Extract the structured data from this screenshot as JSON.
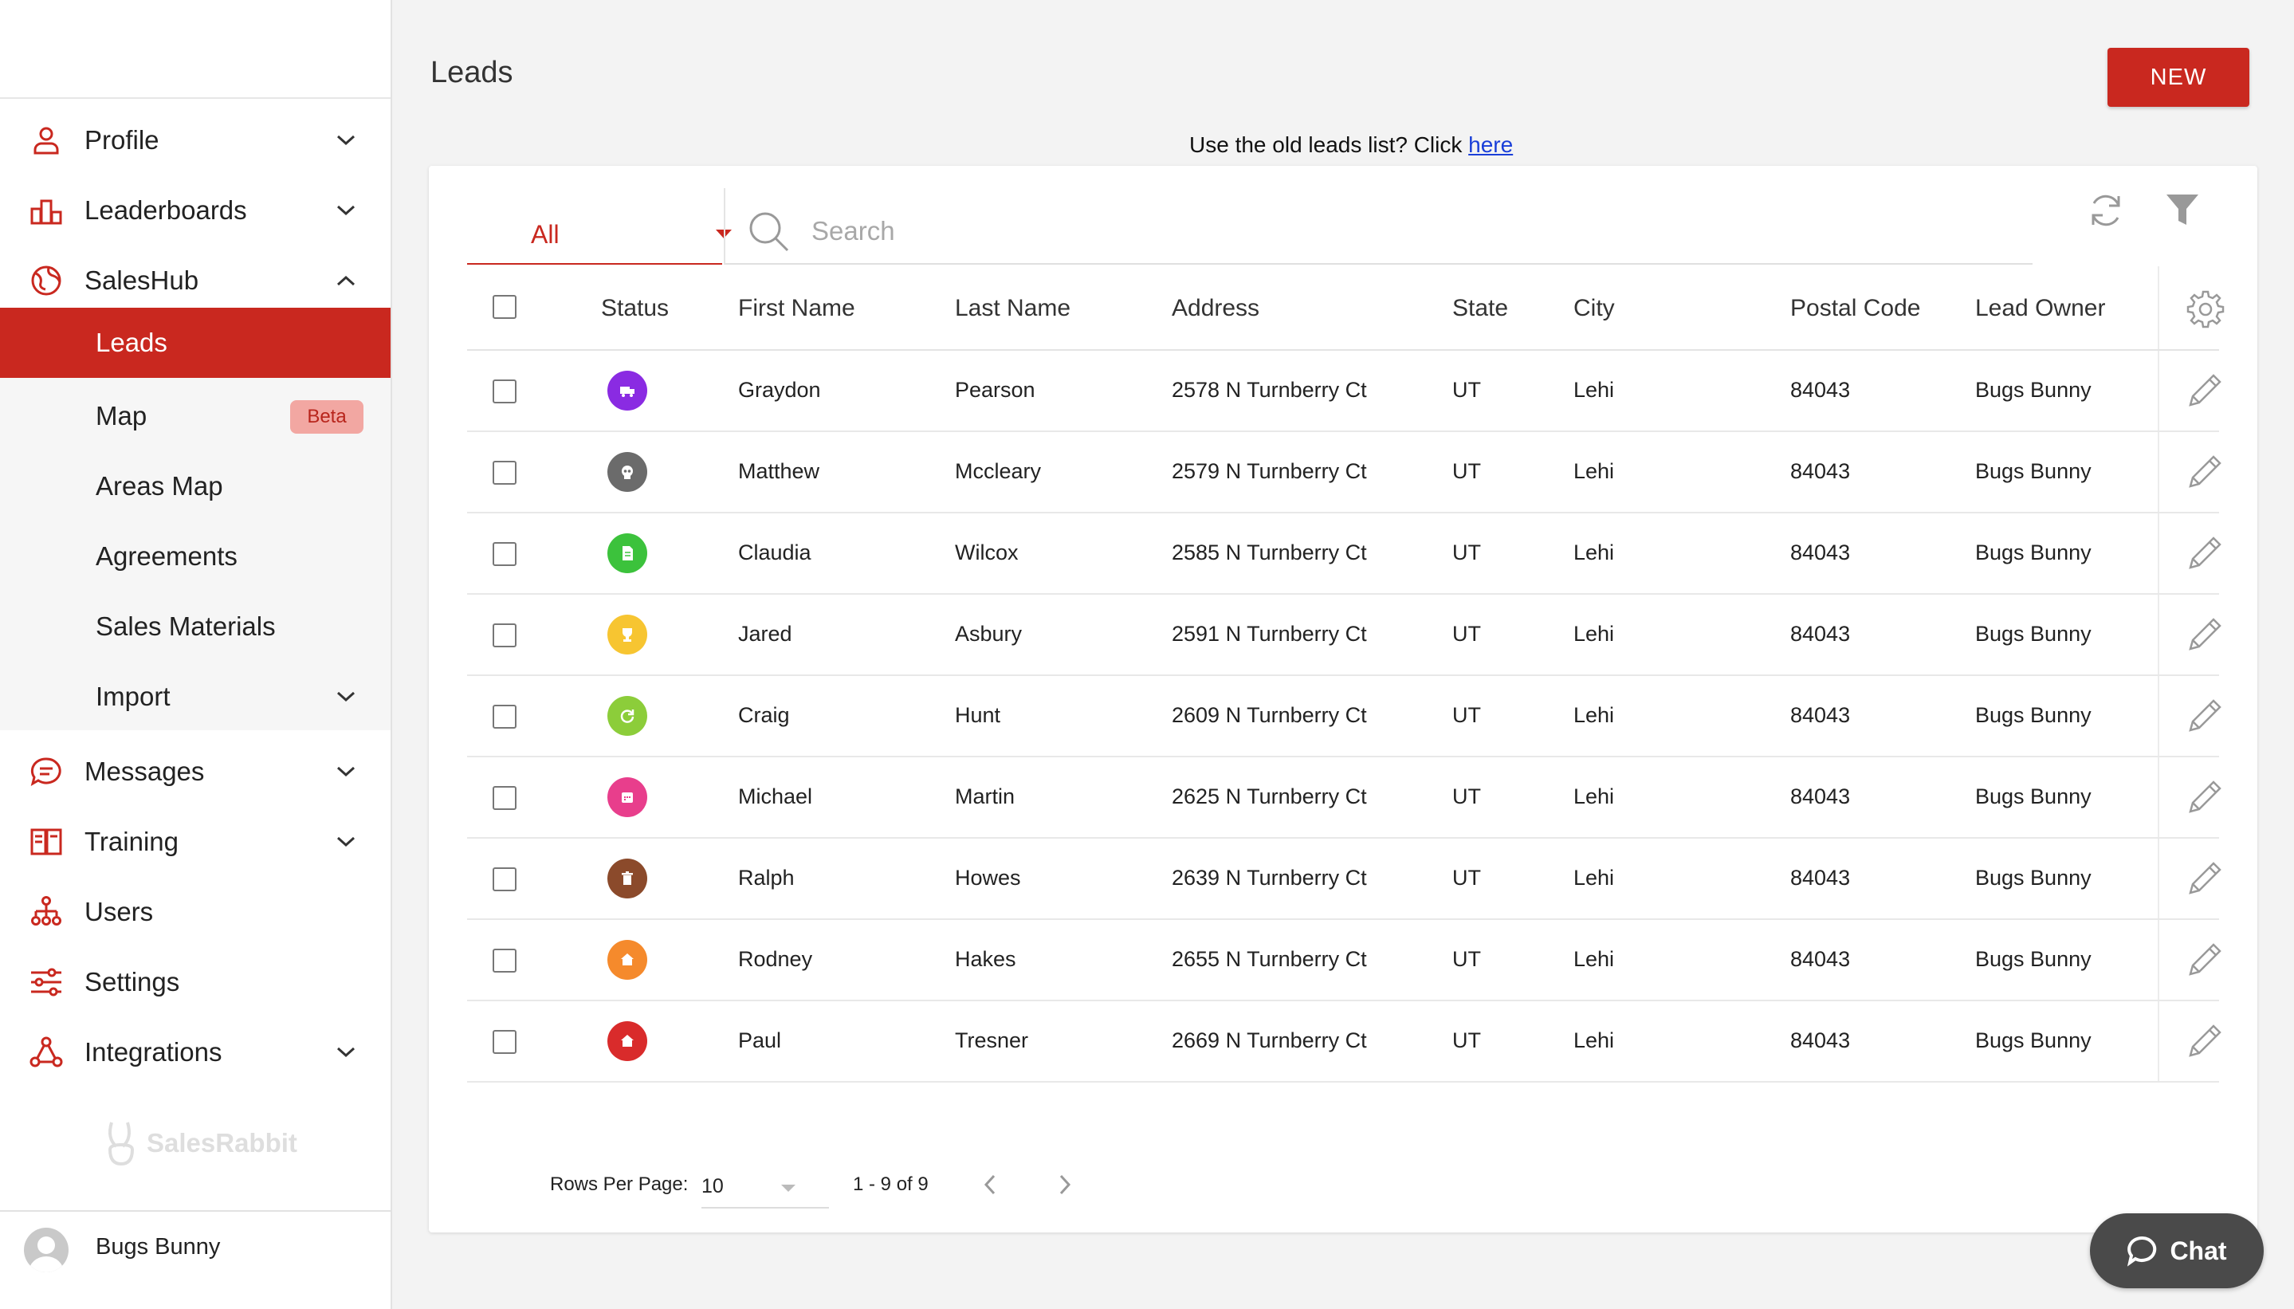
{
  "colors": {
    "brand": "#c9281f",
    "link": "#1a3fd8"
  },
  "sidebar": {
    "items": [
      {
        "label": "Profile",
        "icon": "person-icon",
        "has_chevron": true
      },
      {
        "label": "Leaderboards",
        "icon": "podium-icon",
        "has_chevron": true
      },
      {
        "label": "SalesHub",
        "icon": "globe-icon",
        "expanded": true
      },
      {
        "label": "Messages",
        "icon": "chat-bubble-icon",
        "has_chevron": true
      },
      {
        "label": "Training",
        "icon": "book-icon",
        "has_chevron": true
      },
      {
        "label": "Users",
        "icon": "org-chart-icon"
      },
      {
        "label": "Settings",
        "icon": "sliders-icon"
      },
      {
        "label": "Integrations",
        "icon": "nodes-icon",
        "has_chevron": true
      }
    ],
    "saleshub_sub": [
      {
        "label": "Leads",
        "active": true
      },
      {
        "label": "Map",
        "badge": "Beta"
      },
      {
        "label": "Areas Map"
      },
      {
        "label": "Agreements"
      },
      {
        "label": "Sales Materials"
      },
      {
        "label": "Import",
        "has_chevron": true
      }
    ],
    "logo_text": "SalesRabbit",
    "user_name": "Bugs Bunny"
  },
  "header": {
    "title": "Leads",
    "new_button": "NEW",
    "old_list_text": "Use the old leads list? Click ",
    "old_list_link": "here"
  },
  "filters": {
    "status_filter": "All",
    "search_placeholder": "Search"
  },
  "table": {
    "columns": [
      "Status",
      "First Name",
      "Last Name",
      "Address",
      "State",
      "City",
      "Postal Code",
      "Lead Owner"
    ],
    "rows": [
      {
        "status_color": "#8a2be2",
        "status_icon": "truck-icon",
        "first": "Graydon",
        "last": "Pearson",
        "address": "2578 N Turnberry Ct",
        "state": "UT",
        "city": "Lehi",
        "postal": "84043",
        "owner": "Bugs Bunny"
      },
      {
        "status_color": "#6b6b6b",
        "status_icon": "skull-icon",
        "first": "Matthew",
        "last": "Mccleary",
        "address": "2579 N Turnberry Ct",
        "state": "UT",
        "city": "Lehi",
        "postal": "84043",
        "owner": "Bugs Bunny"
      },
      {
        "status_color": "#3cc23c",
        "status_icon": "document-icon",
        "first": "Claudia",
        "last": "Wilcox",
        "address": "2585 N Turnberry Ct",
        "state": "UT",
        "city": "Lehi",
        "postal": "84043",
        "owner": "Bugs Bunny"
      },
      {
        "status_color": "#f7c531",
        "status_icon": "trophy-icon",
        "first": "Jared",
        "last": "Asbury",
        "address": "2591 N Turnberry Ct",
        "state": "UT",
        "city": "Lehi",
        "postal": "84043",
        "owner": "Bugs Bunny"
      },
      {
        "status_color": "#8ccd3a",
        "status_icon": "refresh-icon",
        "first": "Craig",
        "last": "Hunt",
        "address": "2609 N Turnberry Ct",
        "state": "UT",
        "city": "Lehi",
        "postal": "84043",
        "owner": "Bugs Bunny"
      },
      {
        "status_color": "#e83e8c",
        "status_icon": "calendar-icon",
        "first": "Michael",
        "last": "Martin",
        "address": "2625 N Turnberry Ct",
        "state": "UT",
        "city": "Lehi",
        "postal": "84043",
        "owner": "Bugs Bunny"
      },
      {
        "status_color": "#8b4a2b",
        "status_icon": "trash-icon",
        "first": "Ralph",
        "last": "Howes",
        "address": "2639 N Turnberry Ct",
        "state": "UT",
        "city": "Lehi",
        "postal": "84043",
        "owner": "Bugs Bunny"
      },
      {
        "status_color": "#f58a2c",
        "status_icon": "house-icon",
        "first": "Rodney",
        "last": "Hakes",
        "address": "2655 N Turnberry Ct",
        "state": "UT",
        "city": "Lehi",
        "postal": "84043",
        "owner": "Bugs Bunny"
      },
      {
        "status_color": "#d92b2b",
        "status_icon": "house-icon",
        "first": "Paul",
        "last": "Tresner",
        "address": "2669 N Turnberry Ct",
        "state": "UT",
        "city": "Lehi",
        "postal": "84043",
        "owner": "Bugs Bunny"
      }
    ]
  },
  "pagination": {
    "rows_per_page_label": "Rows Per Page:",
    "rows_per_page": "10",
    "range": "1 - 9 of 9"
  },
  "chat": {
    "label": "Chat"
  }
}
